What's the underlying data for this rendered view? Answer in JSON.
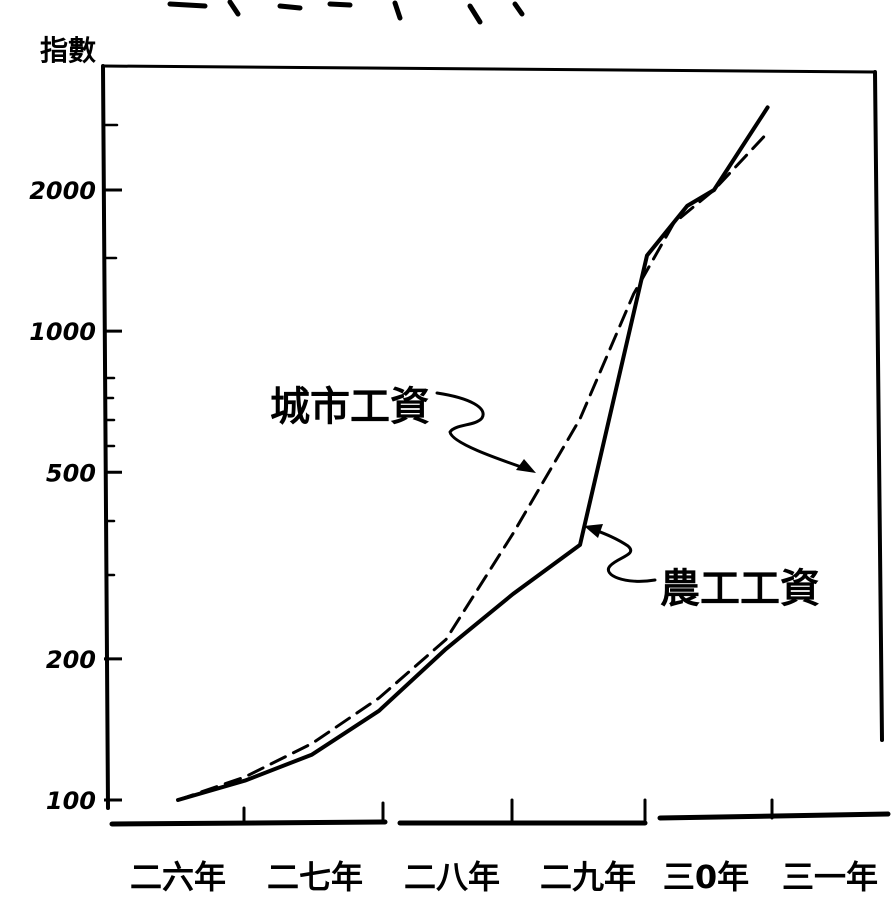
{
  "chart_data": {
    "type": "line",
    "ylabel": "指數",
    "yscale": "log",
    "ylim": [
      100,
      3200
    ],
    "yticks": [
      100,
      200,
      500,
      1000,
      2000
    ],
    "ytick_labels": [
      "100",
      "200",
      "500",
      "1000",
      "2000"
    ],
    "categories": [
      "二六年",
      "二七年",
      "二八年",
      "二九年",
      "三0年",
      "三一年"
    ],
    "series": [
      {
        "name": "城市工資",
        "style": "dashed",
        "x": [
          26.0,
          26.5,
          27.0,
          27.5,
          28.0,
          28.5,
          29.0,
          29.4,
          29.7,
          30.0,
          30.4
        ],
        "values": [
          100,
          112,
          132,
          165,
          220,
          370,
          650,
          1200,
          1700,
          2000,
          2650
        ]
      },
      {
        "name": "農工工資",
        "style": "solid",
        "x": [
          26.0,
          26.5,
          27.0,
          27.5,
          28.0,
          28.5,
          29.0,
          29.5,
          29.8,
          30.0,
          30.4
        ],
        "values": [
          100,
          110,
          125,
          155,
          210,
          275,
          350,
          1450,
          1850,
          2000,
          3000
        ]
      }
    ],
    "annotations": [
      "城市工資",
      "農工工資"
    ],
    "colors": {
      "ink": "#000000",
      "background": "#ffffff"
    }
  }
}
